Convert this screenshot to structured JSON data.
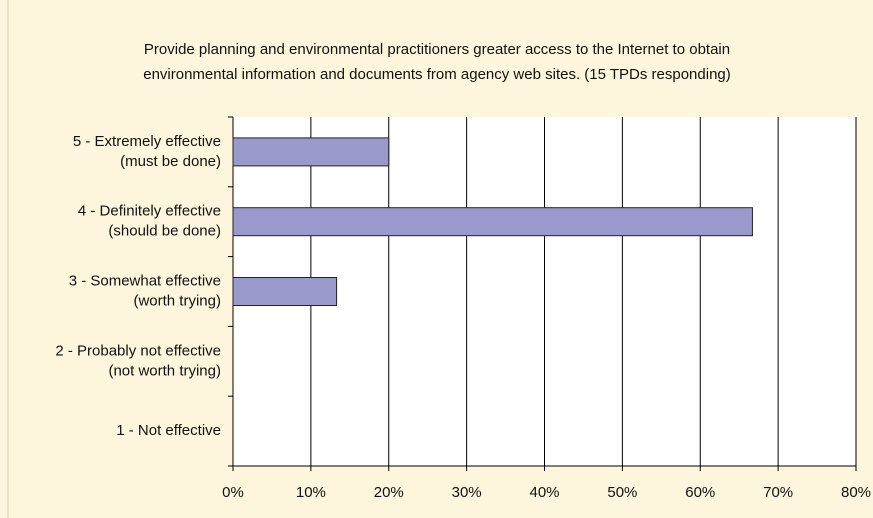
{
  "chart_data": {
    "type": "bar",
    "orientation": "horizontal",
    "title": [
      "Provide planning and environmental practitioners greater access to the Internet to obtain",
      "environmental information and documents from agency web sites.  (15 TPDs responding)"
    ],
    "categories": [
      [
        "5 - Extremely effective",
        "(must be done)"
      ],
      [
        "4 - Definitely effective",
        "(should be done)"
      ],
      [
        "3 - Somewhat effective",
        "(worth trying)"
      ],
      [
        "2 - Probably not effective",
        "(not worth trying)"
      ],
      [
        "1 - Not effective"
      ]
    ],
    "values": [
      20,
      66.7,
      13.3,
      0,
      0
    ],
    "color": "#9999cc",
    "xlim": [
      0,
      80
    ],
    "xticks": [
      {
        "value": 0,
        "label": "0%"
      },
      {
        "value": 10,
        "label": "10%"
      },
      {
        "value": 20,
        "label": "20%"
      },
      {
        "value": 30,
        "label": "30%"
      },
      {
        "value": 40,
        "label": "40%"
      },
      {
        "value": 50,
        "label": "50%"
      },
      {
        "value": 60,
        "label": "60%"
      },
      {
        "value": 70,
        "label": "70%"
      },
      {
        "value": 80,
        "label": "80%"
      }
    ],
    "grid": true
  }
}
